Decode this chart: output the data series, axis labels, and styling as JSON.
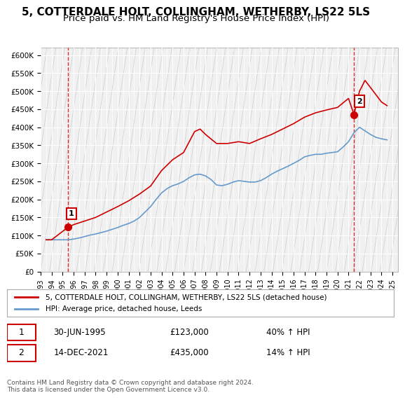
{
  "title": "5, COTTERDALE HOLT, COLLINGHAM, WETHERBY, LS22 5LS",
  "subtitle": "Price paid vs. HM Land Registry's House Price Index (HPI)",
  "title_fontsize": 11,
  "subtitle_fontsize": 9.5,
  "background_color": "#ffffff",
  "plot_bg_color": "#f0f0f0",
  "grid_color": "#ffffff",
  "hpi_color": "#6699cc",
  "price_color": "#cc0000",
  "ylabel_left": "",
  "ylim": [
    0,
    620000
  ],
  "yticks": [
    0,
    50000,
    100000,
    150000,
    200000,
    250000,
    300000,
    350000,
    400000,
    450000,
    500000,
    550000,
    600000
  ],
  "legend_label_price": "5, COTTERDALE HOLT, COLLINGHAM, WETHERBY, LS22 5LS (detached house)",
  "legend_label_hpi": "HPI: Average price, detached house, Leeds",
  "transaction1_date": "30-JUN-1995",
  "transaction1_price": 123000,
  "transaction1_hpi": "40% ↑ HPI",
  "transaction2_date": "14-DEC-2021",
  "transaction2_price": 435000,
  "transaction2_hpi": "14% ↑ HPI",
  "footer": "Contains HM Land Registry data © Crown copyright and database right 2024.\nThis data is licensed under the Open Government Licence v3.0.",
  "hpi_data": {
    "years": [
      1993.5,
      1994.0,
      1994.5,
      1995.0,
      1995.5,
      1996.0,
      1996.5,
      1997.0,
      1997.5,
      1998.0,
      1998.5,
      1999.0,
      1999.5,
      2000.0,
      2000.5,
      2001.0,
      2001.5,
      2002.0,
      2002.5,
      2003.0,
      2003.5,
      2004.0,
      2004.5,
      2005.0,
      2005.5,
      2006.0,
      2006.5,
      2007.0,
      2007.5,
      2008.0,
      2008.5,
      2009.0,
      2009.5,
      2010.0,
      2010.5,
      2011.0,
      2011.5,
      2012.0,
      2012.5,
      2013.0,
      2013.5,
      2014.0,
      2014.5,
      2015.0,
      2015.5,
      2016.0,
      2016.5,
      2017.0,
      2017.5,
      2018.0,
      2018.5,
      2019.0,
      2019.5,
      2020.0,
      2020.5,
      2021.0,
      2021.5,
      2022.0,
      2022.5,
      2023.0,
      2023.5,
      2024.0,
      2024.5
    ],
    "values": [
      88000,
      88000,
      88000,
      88000,
      88000,
      90000,
      93000,
      97000,
      101000,
      104000,
      108000,
      112000,
      117000,
      122000,
      128000,
      133000,
      140000,
      150000,
      165000,
      180000,
      200000,
      218000,
      230000,
      238000,
      243000,
      250000,
      260000,
      268000,
      270000,
      265000,
      255000,
      240000,
      238000,
      242000,
      248000,
      252000,
      250000,
      248000,
      248000,
      252000,
      260000,
      270000,
      278000,
      285000,
      292000,
      300000,
      308000,
      318000,
      322000,
      325000,
      325000,
      328000,
      330000,
      332000,
      345000,
      360000,
      385000,
      400000,
      390000,
      380000,
      372000,
      368000,
      365000
    ]
  },
  "price_data": {
    "years": [
      1993.5,
      1994.0,
      1995.5,
      1996.0,
      1997.0,
      1998.0,
      1999.0,
      2000.0,
      2001.0,
      2002.0,
      2003.0,
      2004.0,
      2005.0,
      2006.0,
      2007.0,
      2007.5,
      2008.0,
      2009.0,
      2010.0,
      2011.0,
      2012.0,
      2013.0,
      2014.0,
      2015.0,
      2016.0,
      2017.0,
      2018.0,
      2019.0,
      2020.0,
      2021.0,
      2021.5,
      2022.0,
      2022.5,
      2023.0,
      2023.5,
      2024.0,
      2024.5
    ],
    "values": [
      88000,
      88000,
      123000,
      130000,
      140000,
      150000,
      165000,
      180000,
      196000,
      215000,
      237000,
      280000,
      310000,
      330000,
      388000,
      395000,
      380000,
      355000,
      355000,
      360000,
      355000,
      368000,
      380000,
      395000,
      410000,
      428000,
      440000,
      448000,
      455000,
      480000,
      435000,
      500000,
      530000,
      510000,
      490000,
      470000,
      460000
    ]
  },
  "sale1_year": 1995.5,
  "sale1_value": 123000,
  "sale2_year": 2021.5,
  "sale2_value": 435000,
  "vline1_year": 1995.5,
  "vline2_year": 2021.5,
  "xmin": 1993.0,
  "xmax": 2025.5,
  "xticks": [
    1993,
    1994,
    1995,
    1996,
    1997,
    1998,
    1999,
    2000,
    2001,
    2002,
    2003,
    2004,
    2005,
    2006,
    2007,
    2008,
    2009,
    2010,
    2011,
    2012,
    2013,
    2014,
    2015,
    2016,
    2017,
    2018,
    2019,
    2020,
    2021,
    2022,
    2023,
    2024,
    2025
  ]
}
